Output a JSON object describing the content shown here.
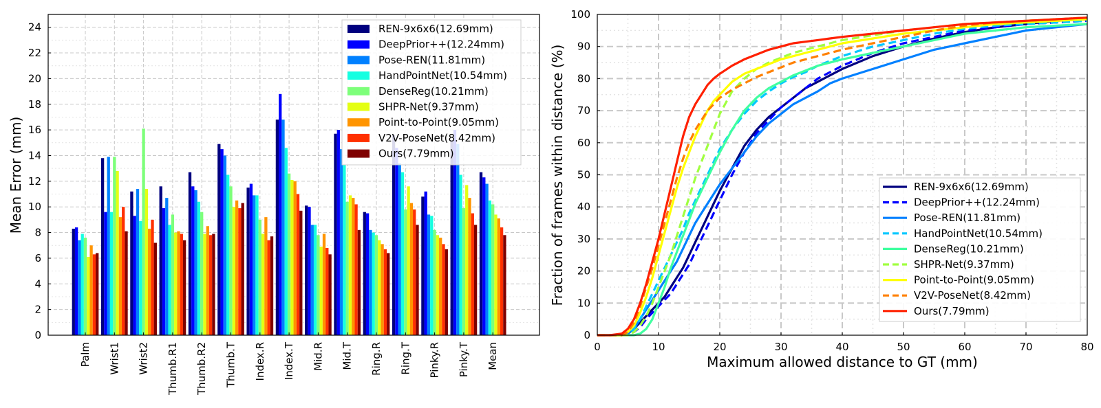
{
  "chart_data": [
    {
      "type": "bar",
      "title": "",
      "ylabel": "Mean Error (mm)",
      "xlabel": "",
      "ylim": [
        0,
        25
      ],
      "yticks": [
        0,
        2,
        4,
        6,
        8,
        10,
        12,
        14,
        16,
        18,
        20,
        22,
        24
      ],
      "grid": true,
      "legend_position": "top-right",
      "categories": [
        "Palm",
        "Wrist1",
        "Wrist2",
        "Thumb.R1",
        "Thumb.R2",
        "Thumb.T",
        "Index.R",
        "Index.T",
        "Mid.R",
        "Mid.T",
        "Ring.R",
        "Ring.T",
        "Pinky.R",
        "Pinky.T",
        "Mean"
      ],
      "series": [
        {
          "name": "REN-9x6x6(12.69mm)",
          "color": "#00007f",
          "values": [
            8.3,
            13.8,
            11.2,
            11.6,
            12.7,
            14.9,
            11.5,
            16.8,
            10.1,
            15.7,
            9.6,
            15.6,
            10.8,
            15.2,
            12.7
          ]
        },
        {
          "name": "DeepPrior++(12.24mm)",
          "color": "#0000ff",
          "values": [
            8.4,
            9.6,
            9.3,
            9.9,
            11.6,
            14.5,
            11.8,
            18.8,
            10.0,
            16.0,
            9.5,
            14.6,
            11.2,
            16.0,
            12.3
          ]
        },
        {
          "name": "Pose-REN(11.81mm)",
          "color": "#0080ff",
          "values": [
            7.4,
            13.9,
            11.4,
            10.7,
            11.3,
            14.0,
            10.9,
            16.8,
            8.6,
            14.5,
            8.2,
            13.4,
            9.4,
            14.9,
            11.8
          ]
        },
        {
          "name": "HandPointNet(10.54mm)",
          "color": "#15ffe1",
          "values": [
            7.9,
            9.6,
            8.9,
            8.6,
            10.4,
            12.5,
            10.9,
            14.6,
            8.6,
            13.3,
            8.0,
            12.7,
            9.3,
            12.5,
            10.5
          ]
        },
        {
          "name": "DenseReg(10.21mm)",
          "color": "#7dff7a",
          "values": [
            7.6,
            13.9,
            16.1,
            9.4,
            9.6,
            11.6,
            9.0,
            12.6,
            7.8,
            10.4,
            7.8,
            9.8,
            8.2,
            9.9,
            10.2
          ]
        },
        {
          "name": "SHPR-Net(9.37mm)",
          "color": "#e4ff13",
          "values": [
            6.1,
            12.8,
            11.4,
            8.0,
            7.9,
            10.0,
            7.9,
            12.1,
            6.9,
            10.9,
            7.4,
            11.6,
            7.8,
            11.7,
            9.4
          ]
        },
        {
          "name": "Point-to-Point(9.05mm)",
          "color": "#ff9400",
          "values": [
            7.0,
            9.2,
            8.3,
            8.1,
            8.5,
            10.5,
            9.2,
            12.0,
            7.9,
            10.7,
            7.1,
            10.3,
            7.6,
            10.7,
            9.1
          ]
        },
        {
          "name": "V2V-PoseNet(8.42mm)",
          "color": "#ff3000",
          "values": [
            6.3,
            10.0,
            9.0,
            7.9,
            7.8,
            9.9,
            7.4,
            11.0,
            6.8,
            10.2,
            6.7,
            9.8,
            7.1,
            9.5,
            8.4
          ]
        },
        {
          "name": "Ours(7.79mm)",
          "color": "#7f0000",
          "values": [
            6.4,
            8.1,
            7.2,
            7.4,
            7.9,
            10.3,
            7.7,
            9.7,
            6.3,
            8.2,
            6.4,
            8.6,
            6.7,
            8.6,
            7.8
          ]
        }
      ]
    },
    {
      "type": "line",
      "title": "",
      "xlabel": "Maximum allowed distance to GT (mm)",
      "ylabel": "Fraction of frames within distance (%)",
      "xlim": [
        0,
        80
      ],
      "ylim": [
        0,
        100
      ],
      "xticks": [
        0,
        10,
        20,
        30,
        40,
        50,
        60,
        70,
        80
      ],
      "yticks": [
        0,
        10,
        20,
        30,
        40,
        50,
        60,
        70,
        80,
        90,
        100
      ],
      "grid": true,
      "legend_position": "lower-right",
      "x": [
        0,
        2,
        4,
        5,
        6,
        7,
        8,
        9,
        10,
        11,
        12,
        13,
        14,
        15,
        16,
        17,
        18,
        19,
        20,
        22,
        24,
        26,
        28,
        30,
        32,
        34,
        36,
        38,
        40,
        45,
        50,
        55,
        60,
        65,
        70,
        75,
        80
      ],
      "series": [
        {
          "name": "REN-9x6x6(12.69mm)",
          "color": "#00007f",
          "dash": "solid",
          "values": [
            0,
            0,
            0,
            0.5,
            2,
            4,
            6,
            8,
            10,
            12,
            15,
            18,
            21,
            25,
            29,
            33,
            37,
            41,
            45,
            52,
            59,
            64,
            68,
            71,
            74,
            77,
            79,
            81,
            83,
            87,
            90,
            92.5,
            94.5,
            96,
            97,
            98,
            98.5
          ]
        },
        {
          "name": "DeepPrior++(12.24mm)",
          "color": "#0000ff",
          "dash": "dash",
          "values": [
            0,
            0,
            0,
            0.2,
            1,
            2.5,
            5,
            7,
            9,
            11,
            13,
            16,
            19,
            22,
            26,
            30,
            34,
            38,
            42,
            50,
            57,
            63,
            67,
            71,
            74,
            77,
            80,
            82,
            84,
            88,
            91,
            93,
            95,
            96,
            97,
            97.5,
            98
          ]
        },
        {
          "name": "Pose-REN(11.81mm)",
          "color": "#0080ff",
          "dash": "solid",
          "values": [
            0,
            0,
            0,
            0.5,
            2,
            5,
            8,
            11,
            14,
            17,
            20,
            23,
            27,
            31,
            35,
            38,
            41,
            44,
            47,
            52,
            57,
            62,
            66,
            69,
            72,
            74,
            76,
            78.5,
            80,
            83,
            86,
            89,
            91,
            93,
            95,
            96,
            97
          ]
        },
        {
          "name": "HandPointNet(10.54mm)",
          "color": "#00c8ff",
          "dash": "dash",
          "values": [
            0,
            0,
            0,
            0.5,
            2,
            5,
            9,
            13,
            17,
            21,
            25,
            29,
            33,
            38,
            42,
            46,
            50,
            54,
            58,
            64,
            69,
            73,
            76,
            78.5,
            80.5,
            82,
            84,
            85.5,
            87,
            90,
            92,
            94,
            95.5,
            96.5,
            97,
            97.5,
            98
          ]
        },
        {
          "name": "DenseReg(10.21mm)",
          "color": "#40ffa0",
          "dash": "solid",
          "values": [
            0,
            0,
            0,
            0,
            0,
            0.5,
            2,
            5,
            10,
            15,
            21,
            26,
            31,
            36,
            41,
            45,
            49,
            53,
            57,
            64,
            70,
            74,
            77,
            79,
            81,
            82.5,
            84,
            85,
            86,
            88,
            90,
            92,
            94,
            95,
            96,
            96.5,
            97
          ]
        },
        {
          "name": "SHPR-Net(9.37mm)",
          "color": "#a0ff40",
          "dash": "dash",
          "values": [
            0,
            0,
            0,
            0,
            1,
            3,
            6,
            10,
            15,
            20,
            25,
            31,
            37,
            43,
            49,
            54,
            59,
            64,
            69,
            76,
            80,
            83,
            85,
            86.5,
            88,
            89,
            90,
            91,
            92,
            93.5,
            95,
            96,
            97,
            97.5,
            98,
            98.5,
            99
          ]
        },
        {
          "name": "Point-to-Point(9.05mm)",
          "color": "#ffff00",
          "dash": "solid",
          "values": [
            0,
            0,
            0,
            1,
            3,
            7,
            12,
            18,
            25,
            32,
            39,
            46,
            52,
            57,
            62,
            66,
            70,
            73,
            75,
            79,
            81.5,
            83,
            84.5,
            86,
            87,
            88,
            89,
            90,
            91,
            92.5,
            94,
            95,
            96,
            97,
            97.5,
            98,
            98.5
          ]
        },
        {
          "name": "V2V-PoseNet(8.42mm)",
          "color": "#ff8000",
          "dash": "dash",
          "values": [
            0,
            0,
            0,
            1,
            4,
            9,
            15,
            21,
            28,
            35,
            42,
            49,
            55,
            60,
            64,
            67,
            70,
            72,
            74,
            76.5,
            78.5,
            80.5,
            82,
            83.5,
            85,
            86,
            87,
            88,
            89,
            91,
            93,
            95,
            96.5,
            97.5,
            98,
            98.5,
            99
          ]
        },
        {
          "name": "Ours(7.79mm)",
          "color": "#ff2000",
          "dash": "solid",
          "values": [
            0,
            0,
            0.5,
            2,
            5,
            10,
            16,
            23,
            30,
            38,
            46,
            54,
            62,
            68,
            72,
            75,
            78,
            80,
            81.5,
            84,
            86,
            87.5,
            89,
            90,
            91,
            91.5,
            92,
            92.5,
            93,
            94,
            95,
            96,
            97,
            97.5,
            98,
            98.5,
            99
          ]
        }
      ]
    }
  ]
}
